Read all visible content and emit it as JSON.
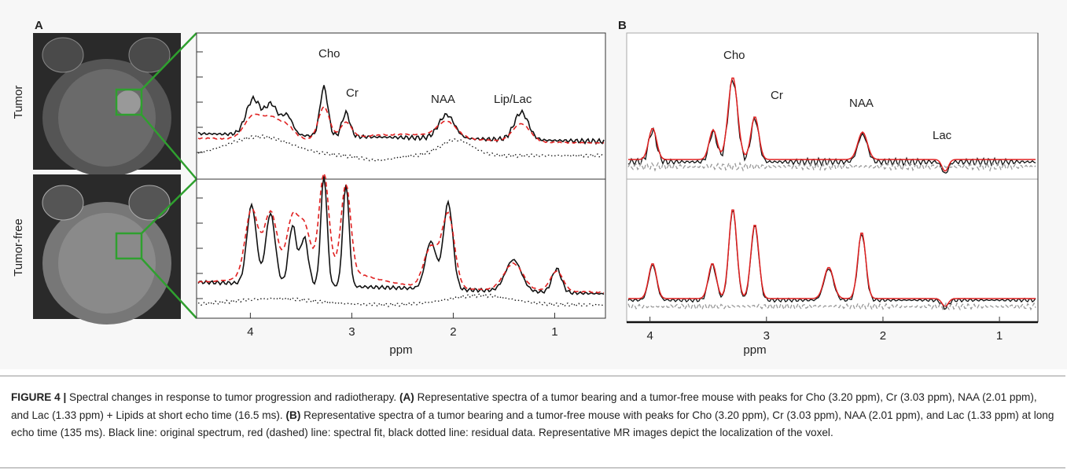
{
  "panel_a": {
    "label": "A",
    "row_labels": [
      "Tumor",
      "Tumor-free"
    ],
    "peak_labels": [
      "Cho",
      "Cr",
      "NAA",
      "Lip/Lac"
    ],
    "x_axis": {
      "label": "ppm",
      "xlim": [
        4.53,
        0.5
      ],
      "xticks": [
        4,
        3,
        2,
        1
      ]
    }
  },
  "panel_b": {
    "label": "B",
    "peak_labels": [
      "Cho",
      "Cr",
      "NAA",
      "Lac"
    ],
    "x_axis": {
      "label": "ppm",
      "xlim": [
        4.2,
        0.67
      ],
      "xticks": [
        4,
        3,
        2,
        1
      ]
    }
  },
  "caption": {
    "figure": "FIGURE 4 |",
    "text_1": " Spectral changes in response to tumor progression and radiotherapy. ",
    "a": "(A)",
    "text_2": " Representative spectra of a tumor bearing and a tumor-free mouse with peaks for Cho (3.20 ppm), Cr (3.03 ppm), NAA (2.01 ppm), and Lac (1.33 ppm) + Lipids at short echo time (16.5 ms). ",
    "b": "(B)",
    "text_3": " Representative spectra of a tumor bearing and a tumor-free mouse with peaks for Cho (3.20 ppm), Cr (3.03 ppm), NAA (2.01 ppm), and Lac (1.33 ppm) at long echo time (135 ms). Black line: original spectrum, red (dashed) line: spectral fit, black dotted line: residual data. Representative MR images depict the localization of the voxel."
  }
}
